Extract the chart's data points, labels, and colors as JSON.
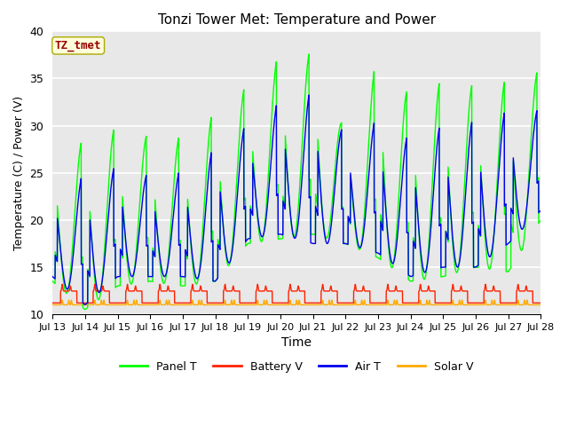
{
  "title": "Tonzi Tower Met: Temperature and Power",
  "xlabel": "Time",
  "ylabel": "Temperature (C) / Power (V)",
  "xlim": [
    0,
    15
  ],
  "ylim": [
    10,
    40
  ],
  "yticks": [
    10,
    15,
    20,
    25,
    30,
    35,
    40
  ],
  "xtick_labels": [
    "Jul 13",
    "Jul 14",
    "Jul 15",
    "Jul 16",
    "Jul 17",
    "Jul 18",
    "Jul 19",
    "Jul 20",
    "Jul 21",
    "Jul 22",
    "Jul 23",
    "Jul 24",
    "Jul 25",
    "Jul 26",
    "Jul 27",
    "Jul 28"
  ],
  "legend_labels": [
    "Panel T",
    "Battery V",
    "Air T",
    "Solar V"
  ],
  "annotation_text": "TZ_tmet",
  "annotation_color": "#990000",
  "annotation_bg": "#ffffdd",
  "panel_t_color": "#00ff00",
  "battery_v_color": "#ff2200",
  "air_t_color": "#0000ee",
  "solar_v_color": "#ffaa00",
  "legend_colors": [
    "#00ff00",
    "#ff2200",
    "#0000ee",
    "#ffaa00"
  ],
  "bg_color": "#e8e8e8",
  "grid_color": "#ffffff",
  "panel_peaks": [
    28.0,
    28.5,
    30.0,
    29.0,
    29.0,
    31.5,
    34.5,
    37.5,
    38.0,
    29.5,
    37.0,
    33.5,
    35.0,
    34.5,
    35.0,
    36.0
  ],
  "panel_mins": [
    13.5,
    10.5,
    13.0,
    13.5,
    13.0,
    13.5,
    17.5,
    18.0,
    18.5,
    17.5,
    16.0,
    13.5,
    14.0,
    15.0,
    14.5,
    20.0
  ],
  "air_peaks": [
    24.0,
    25.0,
    26.0,
    25.0,
    25.5,
    28.0,
    30.5,
    33.0,
    34.0,
    29.5,
    31.0,
    29.0,
    30.5,
    31.0,
    32.0,
    32.0
  ],
  "air_mins": [
    14.0,
    11.0,
    14.0,
    14.0,
    14.0,
    13.5,
    18.0,
    18.5,
    17.5,
    17.5,
    16.5,
    14.0,
    15.0,
    15.0,
    17.5,
    21.0
  ],
  "batt_base": 11.2,
  "batt_peak": 13.0,
  "solar_base": 11.0,
  "solar_peak": 11.5
}
